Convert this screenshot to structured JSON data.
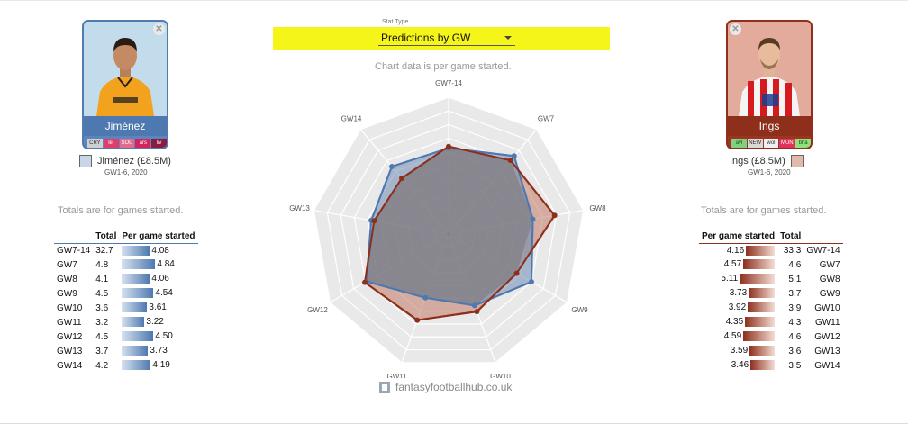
{
  "stat_type": {
    "label": "Stat Type",
    "selected": "Predictions by GW"
  },
  "chart_note": "Chart data is per game started.",
  "totals_note": "Totals are for games started.",
  "watermark": "fantasyfootballhub.co.uk",
  "players": {
    "left": {
      "name": "Jiménez",
      "legend": "Jiménez (£8.5M)",
      "subtitle": "GW1-6, 2020",
      "color": "#4e79b0",
      "fixtures": [
        {
          "label": "CRY",
          "color": "#cfcfcf",
          "text_color": "#333333"
        },
        {
          "label": "lei",
          "color": "#e03c6c",
          "text_color": "#ffffff"
        },
        {
          "label": "SOU",
          "color": "#e36a8f",
          "text_color": "#ffffff"
        },
        {
          "label": "ars",
          "color": "#d4235f",
          "text_color": "#ffffff"
        },
        {
          "label": "liv",
          "color": "#8a1c3e",
          "text_color": "#ffffff"
        }
      ]
    },
    "right": {
      "name": "Ings",
      "legend": "Ings (£8.5M)",
      "subtitle": "GW1-6, 2020",
      "color": "#8e2f1b",
      "fixtures": [
        {
          "label": "avl",
          "color": "#7fd17f",
          "text_color": "#1a4d1a"
        },
        {
          "label": "NEW",
          "color": "#d8d8d8",
          "text_color": "#333333"
        },
        {
          "label": "wol",
          "color": "#f0f0f0",
          "text_color": "#333333"
        },
        {
          "label": "MUN",
          "color": "#e0325b",
          "text_color": "#ffffff"
        },
        {
          "label": "bha",
          "color": "#8fe07a",
          "text_color": "#1a4d1a"
        }
      ]
    }
  },
  "tables": {
    "left": {
      "headers": [
        "Total",
        "Per game started"
      ],
      "rows": [
        {
          "gw": "GW7-14",
          "total": "32.7",
          "per_game": "4.08",
          "bar": 4.08
        },
        {
          "gw": "GW7",
          "total": "4.8",
          "per_game": "4.84",
          "bar": 4.84
        },
        {
          "gw": "GW8",
          "total": "4.1",
          "per_game": "4.06",
          "bar": 4.06
        },
        {
          "gw": "GW9",
          "total": "4.5",
          "per_game": "4.54",
          "bar": 4.54
        },
        {
          "gw": "GW10",
          "total": "3.6",
          "per_game": "3.61",
          "bar": 3.61
        },
        {
          "gw": "GW11",
          "total": "3.2",
          "per_game": "3.22",
          "bar": 3.22
        },
        {
          "gw": "GW12",
          "total": "4.5",
          "per_game": "4.50",
          "bar": 4.5
        },
        {
          "gw": "GW13",
          "total": "3.7",
          "per_game": "3.73",
          "bar": 3.73
        },
        {
          "gw": "GW14",
          "total": "4.2",
          "per_game": "4.19",
          "bar": 4.19
        }
      ]
    },
    "right": {
      "headers": [
        "Per game started",
        "Total"
      ],
      "rows": [
        {
          "gw": "GW7-14",
          "total": "33.3",
          "per_game": "4.16",
          "bar": 4.16
        },
        {
          "gw": "GW7",
          "total": "4.6",
          "per_game": "4.57",
          "bar": 4.57
        },
        {
          "gw": "GW8",
          "total": "5.1",
          "per_game": "5.11",
          "bar": 5.11
        },
        {
          "gw": "GW9",
          "total": "3.7",
          "per_game": "3.73",
          "bar": 3.73
        },
        {
          "gw": "GW10",
          "total": "3.9",
          "per_game": "3.92",
          "bar": 3.92
        },
        {
          "gw": "GW11",
          "total": "4.3",
          "per_game": "4.35",
          "bar": 4.35
        },
        {
          "gw": "GW12",
          "total": "4.6",
          "per_game": "4.59",
          "bar": 4.59
        },
        {
          "gw": "GW13",
          "total": "3.6",
          "per_game": "3.59",
          "bar": 3.59
        },
        {
          "gw": "GW14",
          "total": "3.5",
          "per_game": "3.46",
          "bar": 3.46
        }
      ]
    }
  },
  "chart_data": {
    "type": "radar",
    "categories": [
      "GW7-14",
      "GW7",
      "GW8",
      "GW9",
      "GW10",
      "GW11",
      "GW12",
      "GW13",
      "GW14"
    ],
    "rmax": 6.5,
    "grid_rings": 10,
    "series": [
      {
        "name": "Jiménez (£8.5M)",
        "color": "#4e79b0",
        "values": [
          4.08,
          4.84,
          4.06,
          4.54,
          3.61,
          3.22,
          4.5,
          3.73,
          4.19
        ]
      },
      {
        "name": "Ings (£8.5M)",
        "color": "#8e2f1b",
        "values": [
          4.16,
          4.57,
          5.11,
          3.73,
          3.92,
          4.35,
          4.59,
          3.59,
          3.46
        ]
      }
    ]
  }
}
